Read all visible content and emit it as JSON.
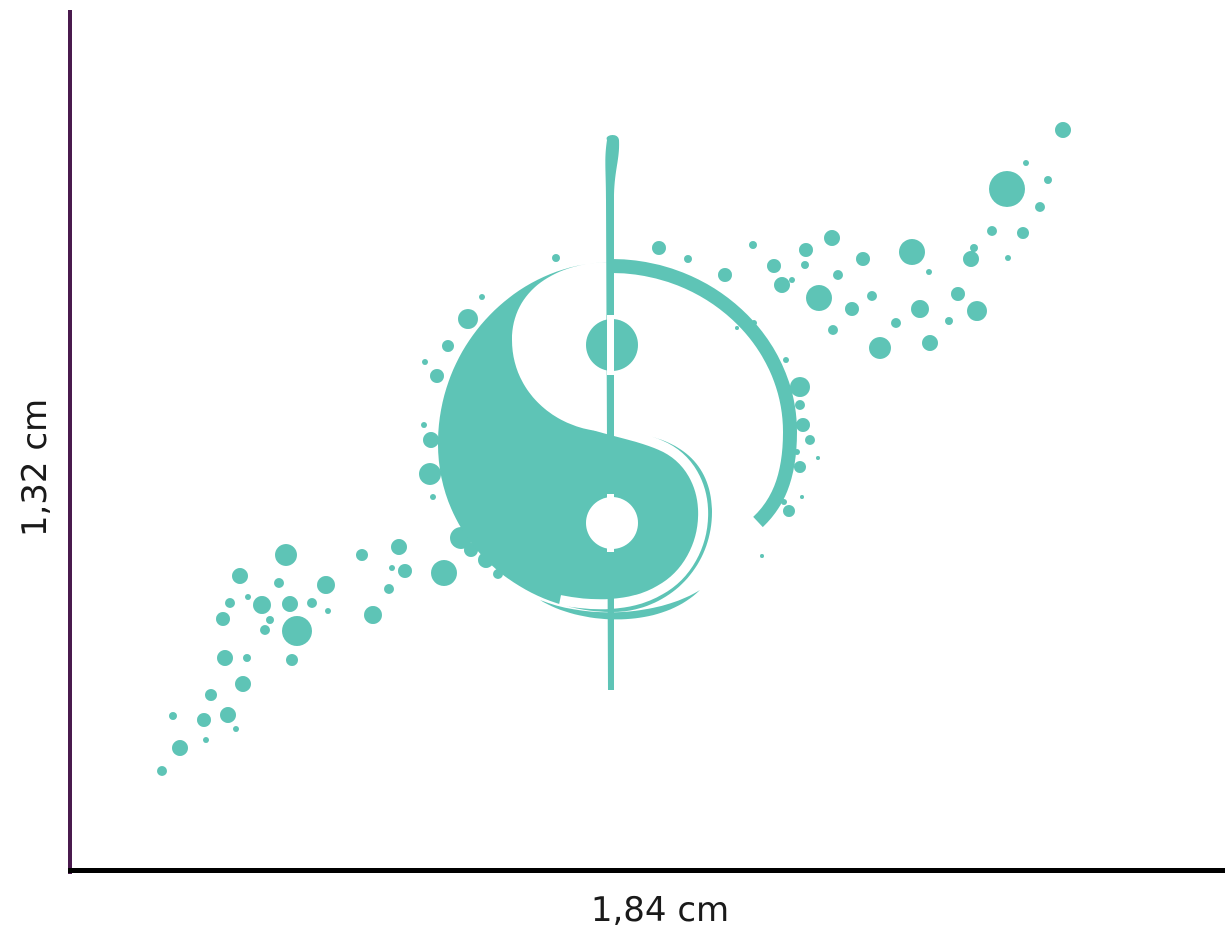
{
  "dimensions": {
    "width_label": "1,84 cm",
    "height_label": "1,32 cm"
  },
  "artwork": {
    "subject": "yin-yang-splatter-decal",
    "fill_color": "#5ec4b6"
  },
  "colors": {
    "vertical_axis": "#4a1a4e",
    "horizontal_axis": "#000000",
    "background": "#ffffff"
  }
}
